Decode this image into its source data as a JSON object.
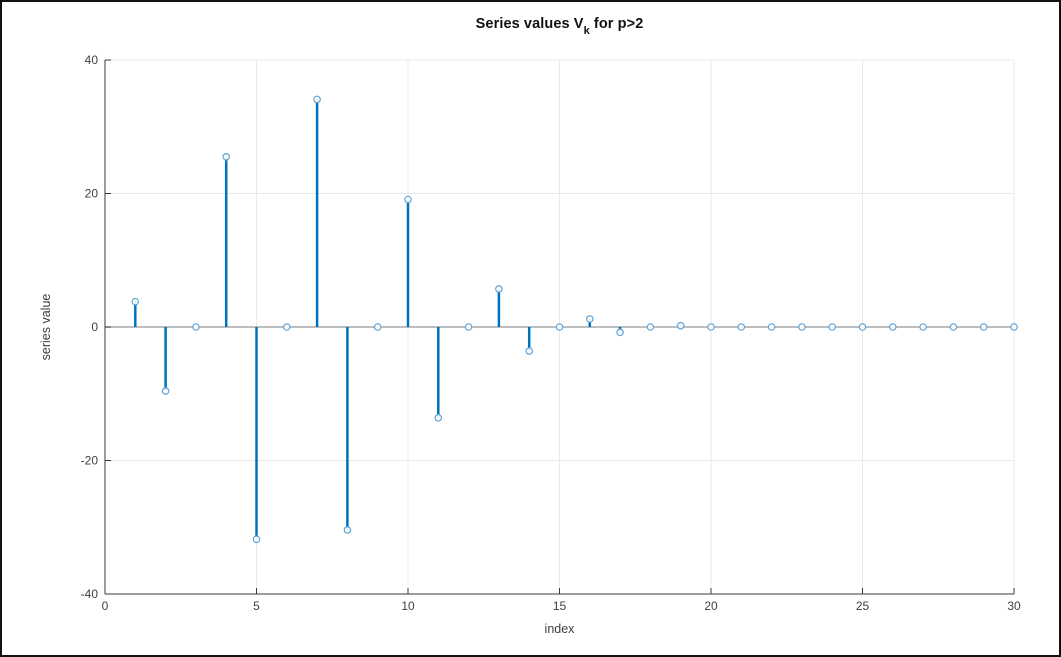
{
  "figure": {
    "background": "#ffffff",
    "border_color": "#111111"
  },
  "chart_data": {
    "type": "stem",
    "title": "Series values V_k for p>2",
    "title_parts": {
      "prefix": "Series values V",
      "subscript": "k",
      "suffix": " for p>2"
    },
    "xlabel": "index",
    "ylabel": "series value",
    "x": [
      1,
      2,
      3,
      4,
      5,
      6,
      7,
      8,
      9,
      10,
      11,
      12,
      13,
      14,
      15,
      16,
      17,
      18,
      19,
      20,
      21,
      22,
      23,
      24,
      25,
      26,
      27,
      28,
      29,
      30
    ],
    "values": [
      3.8,
      -9.6,
      0,
      25.5,
      -31.8,
      0,
      34.1,
      -30.4,
      0,
      19.1,
      -13.6,
      0,
      5.7,
      -3.6,
      0,
      1.2,
      -0.8,
      0,
      0.2,
      0,
      0,
      0,
      0,
      0,
      0,
      0,
      0,
      0,
      0,
      0
    ],
    "xlim": [
      0,
      30
    ],
    "ylim": [
      -40,
      40
    ],
    "xticks": [
      0,
      5,
      10,
      15,
      20,
      25,
      30
    ],
    "yticks": [
      -40,
      -20,
      0,
      20,
      40
    ],
    "grid": true,
    "baseline": 0,
    "legend": null,
    "colors": {
      "stem": "#0072BD",
      "marker_edge": "#5fa4d6",
      "marker_fill": "#ffffff",
      "baseline": "#a8a8a8",
      "grid": "#e9e9e9",
      "axis": "#3a3a3a",
      "tick_text": "#404040"
    }
  }
}
